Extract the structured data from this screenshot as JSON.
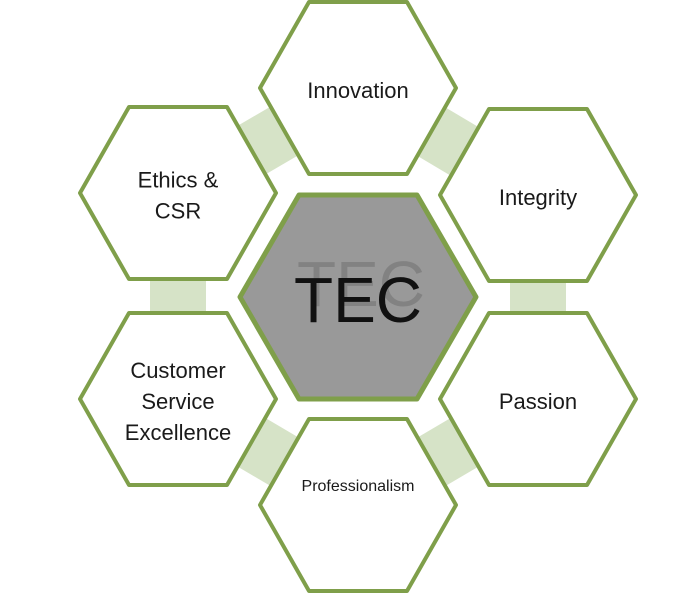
{
  "diagram": {
    "center": {
      "label": "TEC"
    },
    "nodes": [
      {
        "id": "innovation",
        "lines": [
          "Innovation"
        ]
      },
      {
        "id": "integrity",
        "lines": [
          "Integrity"
        ]
      },
      {
        "id": "passion",
        "lines": [
          "Passion"
        ]
      },
      {
        "id": "professionalism",
        "lines": [
          "Professionalism"
        ]
      },
      {
        "id": "customer-service-excellence",
        "lines": [
          "Customer",
          "Service",
          "Excellence"
        ]
      },
      {
        "id": "ethics-csr",
        "lines": [
          "Ethics &",
          "CSR"
        ]
      }
    ],
    "colors": {
      "hex_border": "#7f9f4a",
      "hex_fill": "#ffffff",
      "center_fill": "#999999",
      "connector": "#d6e3c7",
      "text": "#1a1a1a"
    }
  }
}
